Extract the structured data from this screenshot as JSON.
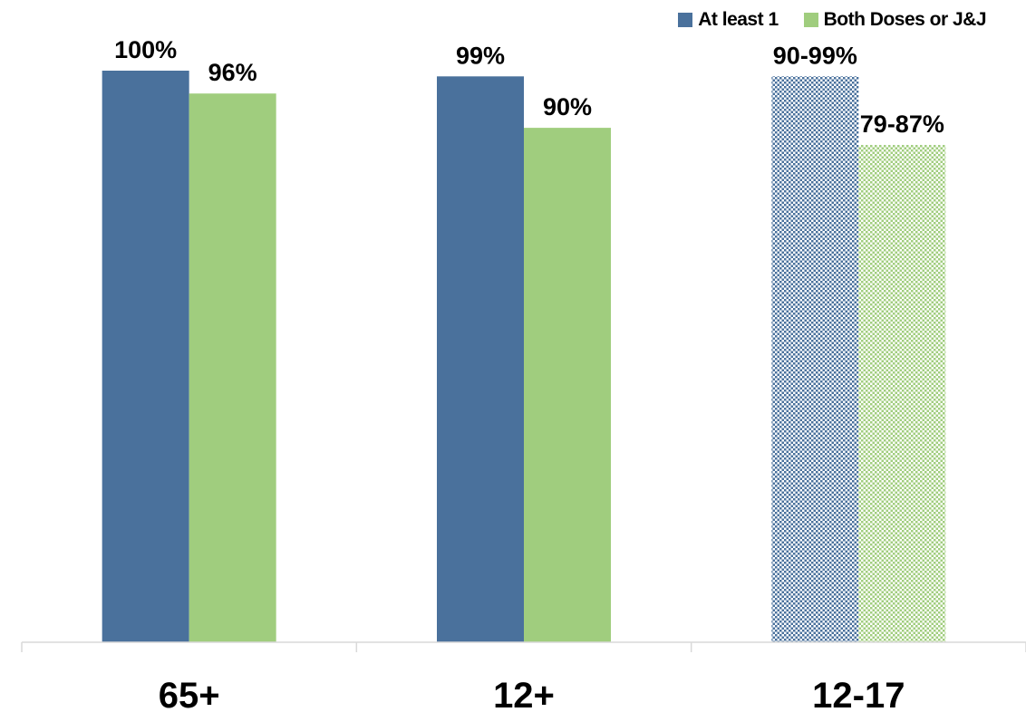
{
  "chart_data": {
    "type": "bar",
    "categories": [
      "65+",
      "12+",
      "12-17"
    ],
    "series": [
      {
        "name": "At least 1",
        "color": "#4a719c",
        "values": [
          100,
          99,
          99
        ],
        "range_low": [
          null,
          null,
          90
        ],
        "labels": [
          "100%",
          "99%",
          "90-99%"
        ],
        "estimated": [
          false,
          false,
          true
        ]
      },
      {
        "name": "Both Doses or J&J",
        "color": "#a0cd7e",
        "values": [
          96,
          90,
          87
        ],
        "range_low": [
          null,
          null,
          79
        ],
        "labels": [
          "96%",
          "90%",
          "79-87%"
        ],
        "estimated": [
          false,
          false,
          true
        ]
      }
    ],
    "xlabel": "",
    "ylabel": "",
    "ylim": [
      0,
      100
    ],
    "grid": false,
    "legend": "top-right"
  }
}
